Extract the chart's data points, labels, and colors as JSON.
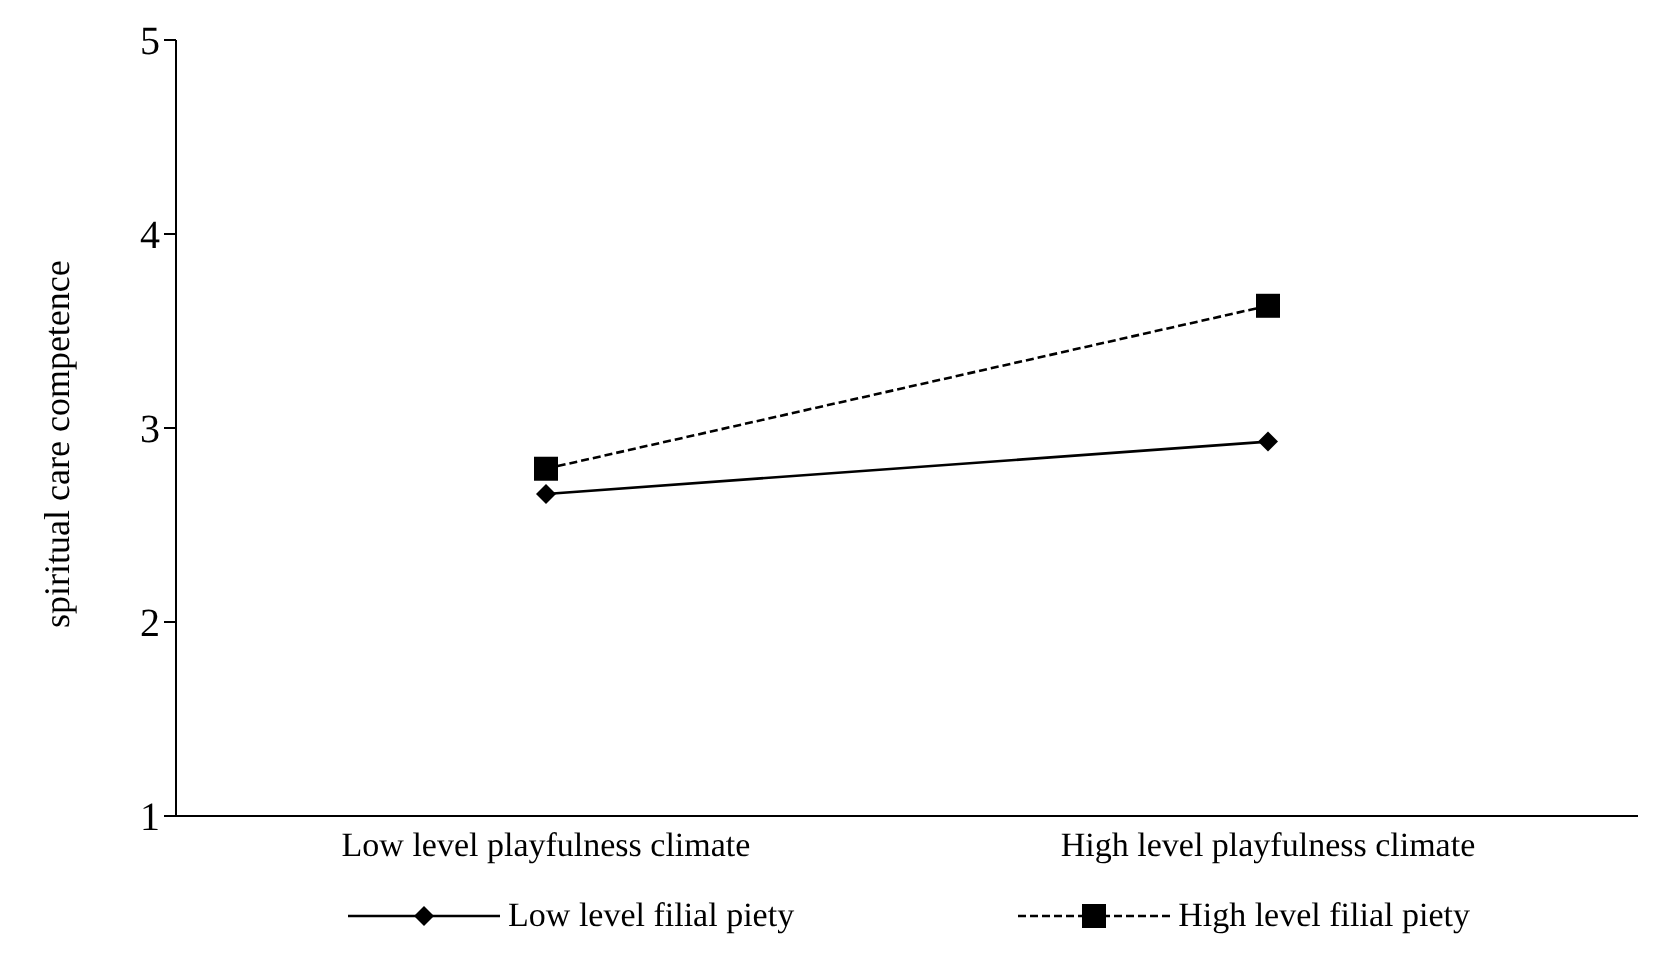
{
  "chart_data": {
    "type": "line",
    "ylabel": "spiritual care competence",
    "categories": [
      "Low level playfulness climate",
      "High level playfulness climate"
    ],
    "series": [
      {
        "name": "Low level filial piety",
        "color": "#000000",
        "values": [
          2.66,
          2.93
        ],
        "marker": "diamond",
        "line_style": "solid"
      },
      {
        "name": "High level filial piety",
        "color": "#000000",
        "values": [
          2.79,
          3.63
        ],
        "marker": "square",
        "line_style": "dashed"
      }
    ],
    "ylim": [
      1,
      5
    ],
    "yticks": [
      1,
      2,
      3,
      4,
      5
    ],
    "grid": false,
    "legend": "bottom"
  }
}
